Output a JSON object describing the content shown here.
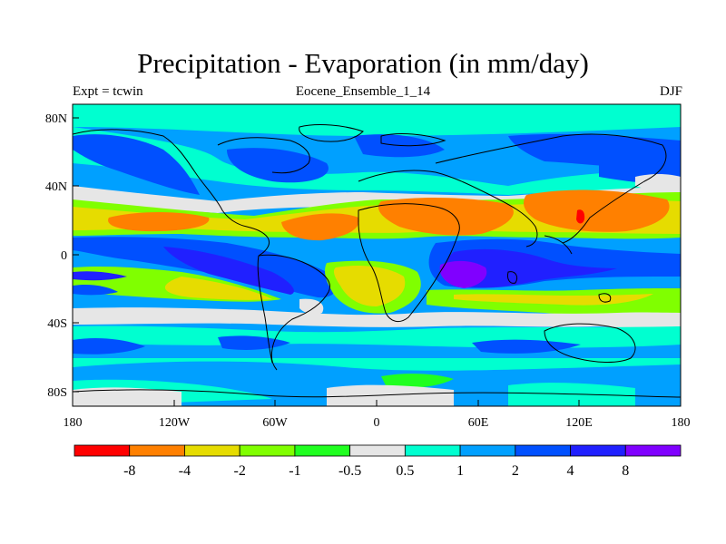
{
  "title": "Precipitation - Evaporation (in mm/day)",
  "subtitle_left": "Expt = tcwin",
  "subtitle_center": "Eocene_Ensemble_1_14",
  "subtitle_right": "DJF",
  "axes": {
    "lon_ticks": [
      "180",
      "120W",
      "60W",
      "0",
      "60E",
      "120E",
      "180"
    ],
    "lat_ticks": [
      "80N",
      "40N",
      "0",
      "40S",
      "80S"
    ]
  },
  "colorbar": {
    "colors": [
      "#ff0000",
      "#ff8000",
      "#e6dc00",
      "#80ff00",
      "#20ff20",
      "#e6e6e6",
      "#00ffd0",
      "#00a0ff",
      "#0050ff",
      "#2020ff",
      "#8000ff"
    ],
    "labels": [
      "-8",
      "-4",
      "-2",
      "-1",
      "-0.5",
      "0.5",
      "1",
      "2",
      "4",
      "8"
    ]
  },
  "chart_data": {
    "type": "heatmap",
    "title": "Precipitation - Evaporation (in mm/day)",
    "subtitle": "Eocene_Ensemble_1_14",
    "experiment": "Expt = tcwin",
    "season": "DJF",
    "x_range": [
      "180",
      "180"
    ],
    "x_ticks": [
      "180",
      "120W",
      "60W",
      "0",
      "60E",
      "120E",
      "180"
    ],
    "y_ticks": [
      "80N",
      "40N",
      "0",
      "40S",
      "80S"
    ],
    "levels": [
      -8,
      -4,
      -2,
      -1,
      -0.5,
      0.5,
      1,
      2,
      4,
      8
    ],
    "features": [
      {
        "region": "subtropical North Pacific",
        "value_range": "-4 to -2"
      },
      {
        "region": "equatorial Indian Ocean",
        "value_range": "> 8"
      },
      {
        "region": "southern subtropics",
        "value_range": "-2 to -1"
      },
      {
        "region": "western Pacific 20N",
        "value_range": "< -8"
      }
    ]
  }
}
